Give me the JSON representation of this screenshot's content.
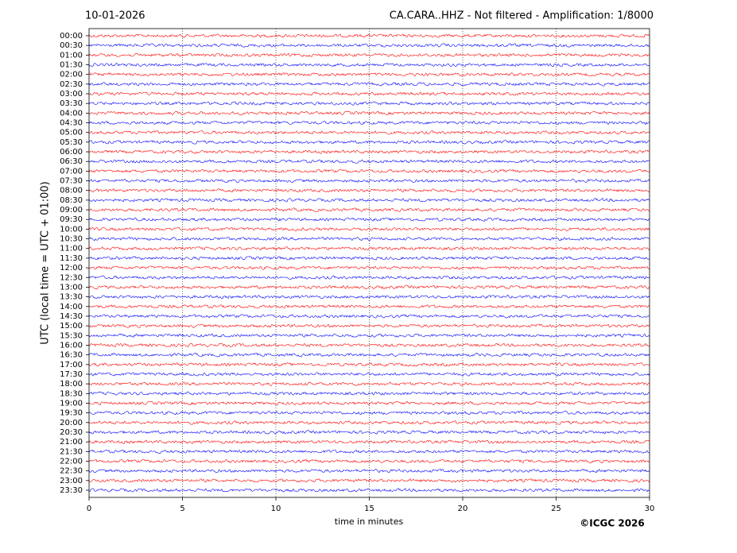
{
  "chart_data": {
    "type": "helicorder",
    "date": "10-01-2026",
    "title": "CA.CARA..HHZ - Not filtered - Amplification: 1/8000",
    "xlabel": "time in minutes",
    "ylabel": "UTC (local time = UTC + 01:00)",
    "categories": [
      "00:00",
      "00:30",
      "01:00",
      "01:30",
      "02:00",
      "02:30",
      "03:00",
      "03:30",
      "04:00",
      "04:30",
      "05:00",
      "05:30",
      "06:00",
      "06:30",
      "07:00",
      "07:30",
      "08:00",
      "08:30",
      "09:00",
      "09:30",
      "10:00",
      "10:30",
      "11:00",
      "11:30",
      "12:00",
      "12:30",
      "13:00",
      "13:30",
      "14:00",
      "14:30",
      "15:00",
      "15:30",
      "16:00",
      "16:30",
      "17:00",
      "17:30",
      "18:00",
      "18:30",
      "19:00",
      "19:30",
      "20:00",
      "20:30",
      "21:00",
      "21:30",
      "22:00",
      "22:30",
      "23:00",
      "23:30"
    ],
    "trace_colors": [
      "#ff0000",
      "#0000ff"
    ],
    "xlim": [
      0,
      30
    ],
    "xticks": [
      0,
      5,
      10,
      15,
      20,
      25,
      30
    ],
    "grid": true
  },
  "footer": {
    "copyright": "©ICGC 2026"
  }
}
